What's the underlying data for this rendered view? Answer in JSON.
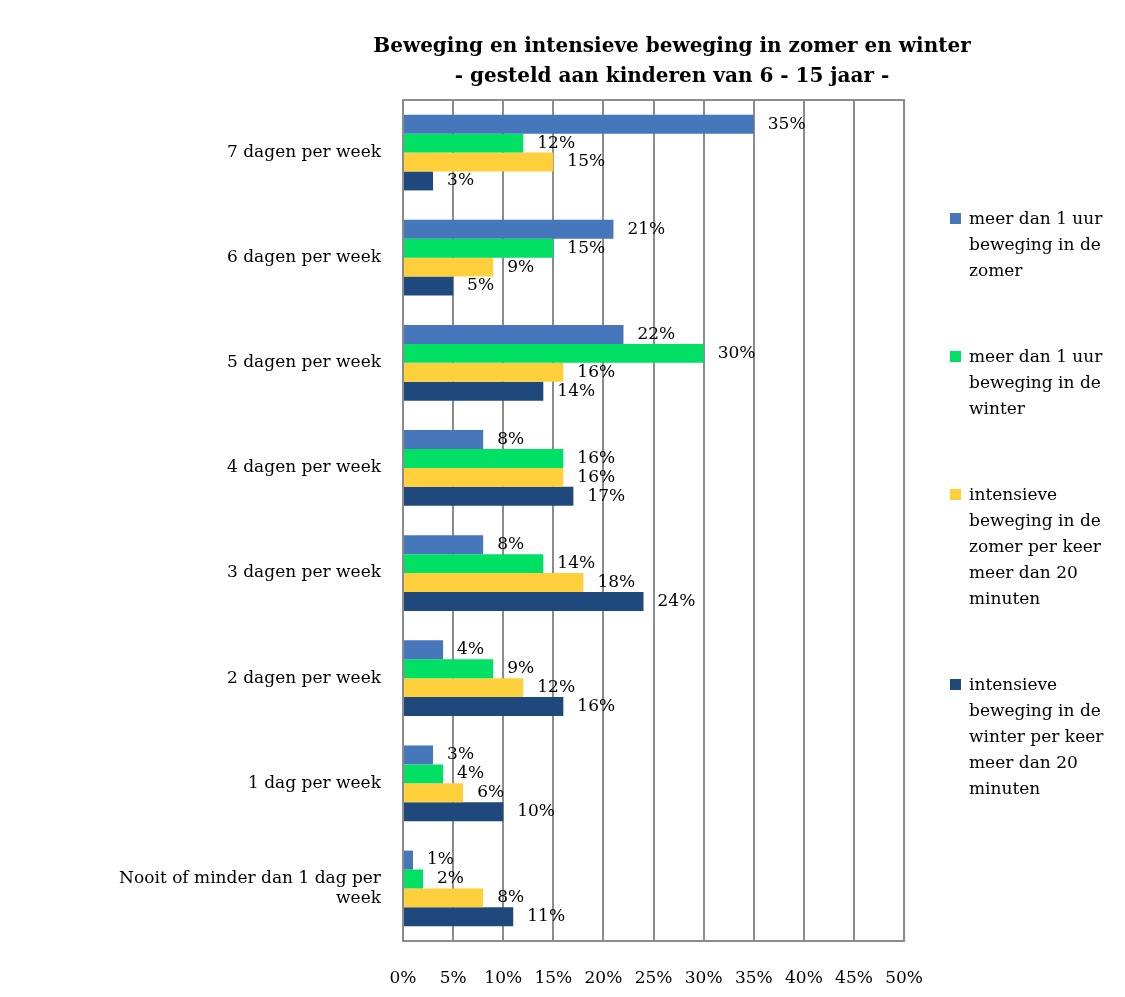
{
  "chart_data": {
    "type": "bar",
    "orientation": "horizontal",
    "title": "Beweging en intensieve beweging in zomer en winter",
    "subtitle": "- gesteld aan kinderen van 6 - 15 jaar -",
    "categories": [
      "7 dagen per week",
      "6 dagen per week",
      "5 dagen per week",
      "4 dagen per week",
      "3 dagen per week",
      "2 dagen per week",
      "1 dag per week",
      "Nooit of minder dan 1 dag per week"
    ],
    "series": [
      {
        "name": "meer dan 1 uur beweging in de zomer",
        "color": "#4677ba",
        "values": [
          35,
          21,
          22,
          8,
          8,
          4,
          3,
          1
        ],
        "value_labels": [
          "35%",
          "21%",
          "22%",
          "8%",
          "8%",
          "4%",
          "3%",
          "1%"
        ]
      },
      {
        "name": "meer dan 1 uur beweging in de winter",
        "color": "#00e064",
        "values": [
          12,
          15,
          30,
          16,
          14,
          9,
          4,
          2
        ],
        "value_labels": [
          "12%",
          "15%",
          "30%",
          "16%",
          "14%",
          "9%",
          "4%",
          "2%"
        ]
      },
      {
        "name": "intensieve beweging in de zomer per keer meer dan 20 minuten",
        "color": "#ffd03c",
        "values": [
          15,
          9,
          16,
          16,
          18,
          12,
          6,
          8
        ],
        "value_labels": [
          "15%",
          "9%",
          "16%",
          "16%",
          "18%",
          "12%",
          "6%",
          "8%"
        ]
      },
      {
        "name": "intensieve beweging in de winter per keer meer dan 20 minuten",
        "color": "#1f487c",
        "values": [
          3,
          5,
          14,
          17,
          24,
          16,
          10,
          11
        ],
        "value_labels": [
          "3%",
          "5%",
          "14%",
          "17%",
          "24%",
          "16%",
          "10%",
          "11%"
        ]
      }
    ],
    "xlim": [
      0,
      50
    ],
    "xticks": [
      {
        "value": 0,
        "label": "0%"
      },
      {
        "value": 5,
        "label": "5%"
      },
      {
        "value": 10,
        "label": "10%"
      },
      {
        "value": 15,
        "label": "15%"
      },
      {
        "value": 20,
        "label": "20%"
      },
      {
        "value": 25,
        "label": "25%"
      },
      {
        "value": 30,
        "label": "30%"
      },
      {
        "value": 35,
        "label": "35%"
      },
      {
        "value": 40,
        "label": "40%"
      },
      {
        "value": 45,
        "label": "45%"
      },
      {
        "value": 50,
        "label": "50%"
      }
    ],
    "grid": "x",
    "legend": "right"
  }
}
